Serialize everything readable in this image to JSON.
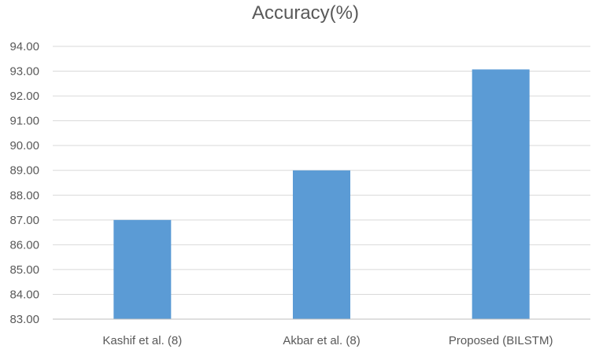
{
  "chart_data": {
    "type": "bar",
    "title": "Accuracy(%)",
    "xlabel": "",
    "ylabel": "",
    "categories": [
      "Kashif et al. (8)",
      "Akbar  et al. (8)",
      "Proposed (BILSTM)"
    ],
    "values": [
      87.0,
      89.0,
      93.07
    ],
    "ylim": [
      83.0,
      94.0
    ],
    "yticks": [
      "83.00",
      "84.00",
      "85.00",
      "86.00",
      "87.00",
      "88.00",
      "89.00",
      "90.00",
      "91.00",
      "92.00",
      "93.00",
      "94.00"
    ],
    "grid": true,
    "legend": "none",
    "colors": {
      "bar": "#5b9bd5",
      "grid": "#d9d9d9",
      "text": "#595959"
    }
  }
}
